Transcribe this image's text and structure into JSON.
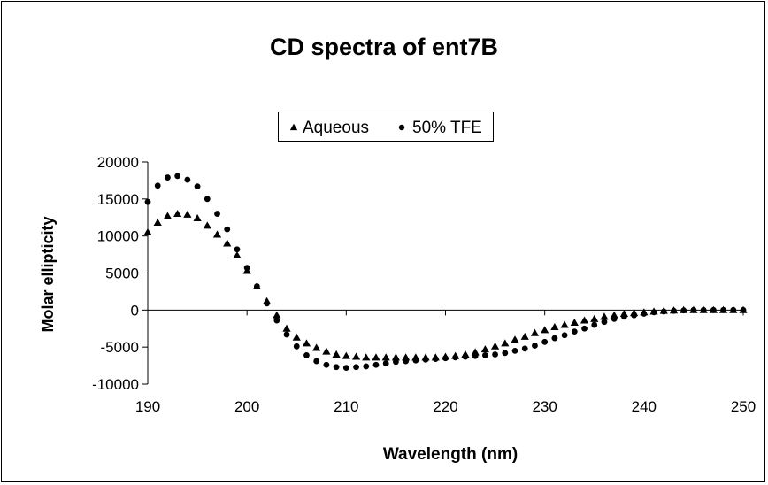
{
  "chart_data": {
    "type": "scatter",
    "title": "CD spectra of ent7B",
    "xlabel": "Wavelength (nm)",
    "ylabel": "Molar ellipticity",
    "xlim": [
      190,
      250
    ],
    "ylim": [
      -10000,
      20000
    ],
    "xticks": [
      "190",
      "200",
      "210",
      "220",
      "230",
      "240",
      "250"
    ],
    "yticks": [
      "20000",
      "15000",
      "10000",
      "5000",
      "0",
      "-5000",
      "-10000"
    ],
    "grid": false,
    "legend_position": "top-center",
    "x": [
      190,
      191,
      192,
      193,
      194,
      195,
      196,
      197,
      198,
      199,
      200,
      201,
      202,
      203,
      204,
      205,
      206,
      207,
      208,
      209,
      210,
      211,
      212,
      213,
      214,
      215,
      216,
      217,
      218,
      219,
      220,
      221,
      222,
      223,
      224,
      225,
      226,
      227,
      228,
      229,
      230,
      231,
      232,
      233,
      234,
      235,
      236,
      237,
      238,
      239,
      240,
      241,
      242,
      243,
      244,
      245,
      246,
      247,
      248,
      249,
      250
    ],
    "series": [
      {
        "name": "Aqueous",
        "marker": "triangle",
        "color": "#000000",
        "values": [
          10500,
          11800,
          12700,
          13000,
          12900,
          12400,
          11400,
          10200,
          9000,
          7400,
          5300,
          3200,
          1200,
          -700,
          -2500,
          -3700,
          -4500,
          -5100,
          -5600,
          -6000,
          -6200,
          -6300,
          -6400,
          -6400,
          -6400,
          -6400,
          -6400,
          -6400,
          -6400,
          -6400,
          -6300,
          -6200,
          -6000,
          -5700,
          -5300,
          -4900,
          -4500,
          -4000,
          -3600,
          -3100,
          -2700,
          -2300,
          -2000,
          -1700,
          -1400,
          -1200,
          -900,
          -700,
          -500,
          -400,
          -300,
          -200,
          -100,
          -50,
          0,
          0,
          0,
          0,
          0,
          0,
          0
        ]
      },
      {
        "name": "50% TFE",
        "marker": "circle",
        "color": "#000000",
        "values": [
          14600,
          16800,
          17900,
          18100,
          17600,
          16700,
          15000,
          13000,
          10900,
          8200,
          5700,
          3200,
          900,
          -1400,
          -3300,
          -4900,
          -6100,
          -6900,
          -7400,
          -7700,
          -7800,
          -7700,
          -7600,
          -7400,
          -7200,
          -7000,
          -6900,
          -6800,
          -6700,
          -6600,
          -6500,
          -6400,
          -6300,
          -6200,
          -6100,
          -6000,
          -5800,
          -5500,
          -5200,
          -4800,
          -4300,
          -3800,
          -3400,
          -2900,
          -2500,
          -2000,
          -1600,
          -1200,
          -900,
          -700,
          -500,
          -300,
          -200,
          -100,
          -50,
          0,
          0,
          0,
          0,
          0,
          0
        ]
      }
    ]
  }
}
